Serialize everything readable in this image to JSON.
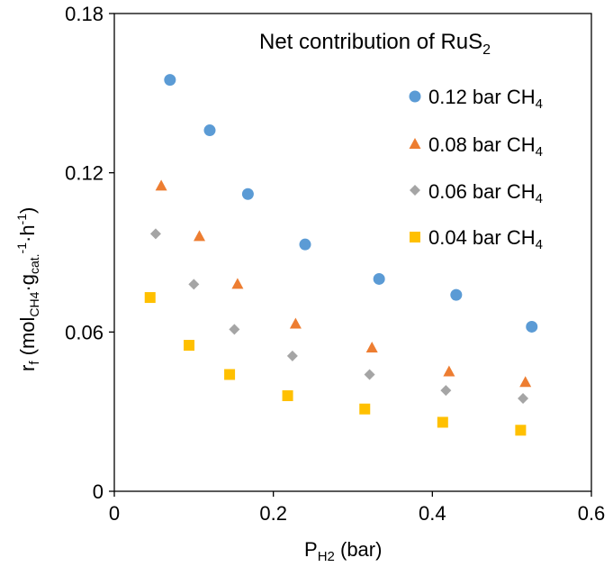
{
  "chart_data": {
    "type": "scatter",
    "title": "Net contribution of RuS",
    "title_sub": "2",
    "xlabel": "P",
    "xlabel_sub": "H2",
    "xlabel_unit": " (bar)",
    "ylabel_parts": {
      "r": "r",
      "f": "f",
      "open": " (mol",
      "ch4": "CH4",
      "dot1": "·g",
      "cat": "cat.",
      "exp1": "-1",
      "dot2": "·h",
      "exp2": "-1",
      "close": ")"
    },
    "xlim": [
      0,
      0.6
    ],
    "ylim": [
      0,
      0.18
    ],
    "x_ticks": [
      "0",
      "0.2",
      "0.4",
      "0.6"
    ],
    "y_ticks": [
      "0",
      "0.06",
      "0.12",
      "0.18"
    ],
    "legend_position": "top-right",
    "series": [
      {
        "name": "0.12 bar CH",
        "name_sub": "4",
        "marker": "circle",
        "color": "#5B9BD5",
        "x": [
          0.07,
          0.12,
          0.168,
          0.24,
          0.333,
          0.43,
          0.525
        ],
        "y": [
          0.155,
          0.136,
          0.112,
          0.093,
          0.08,
          0.074,
          0.062
        ]
      },
      {
        "name": "0.08 bar CH",
        "name_sub": "4",
        "marker": "triangle",
        "color": "#ED7D31",
        "x": [
          0.059,
          0.107,
          0.155,
          0.228,
          0.324,
          0.421,
          0.517
        ],
        "y": [
          0.115,
          0.096,
          0.078,
          0.063,
          0.054,
          0.045,
          0.041
        ]
      },
      {
        "name": "0.06 bar CH",
        "name_sub": "4",
        "marker": "diamond",
        "color": "#A5A5A5",
        "x": [
          0.052,
          0.1,
          0.151,
          0.224,
          0.321,
          0.417,
          0.514
        ],
        "y": [
          0.097,
          0.078,
          0.061,
          0.051,
          0.044,
          0.038,
          0.035
        ]
      },
      {
        "name": "0.04 bar CH",
        "name_sub": "4",
        "marker": "square",
        "color": "#FFC000",
        "x": [
          0.045,
          0.094,
          0.145,
          0.218,
          0.315,
          0.413,
          0.511
        ],
        "y": [
          0.073,
          0.055,
          0.044,
          0.036,
          0.031,
          0.026,
          0.023
        ]
      }
    ]
  }
}
